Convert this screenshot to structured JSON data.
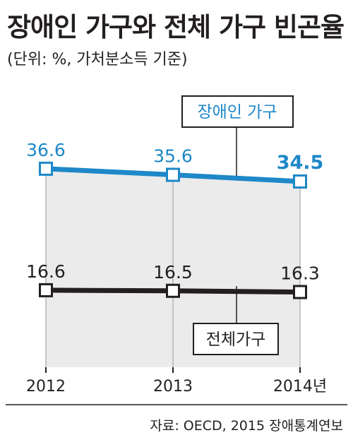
{
  "title": "장애인 가구와 전체 가구 빈곤율",
  "subtitle": "(단위: %, 가처분소득 기준)",
  "source": "자료: OECD, 2015 장애통계연보",
  "colors": {
    "blue": "#1e88c8",
    "black": "#231f20",
    "shade": "#ebebeb"
  },
  "chart_data": {
    "type": "line",
    "categories": [
      "2012",
      "2013",
      "2014년"
    ],
    "series": [
      {
        "name": "장애인 가구",
        "values": [
          36.6,
          35.6,
          34.5
        ],
        "labels": [
          "36.6",
          "35.6",
          "34.5"
        ],
        "color": "#1e88c8"
      },
      {
        "name": "전체가구",
        "values": [
          16.6,
          16.5,
          16.3
        ],
        "labels": [
          "16.6",
          "16.5",
          "16.3"
        ],
        "color": "#231f20"
      }
    ]
  }
}
